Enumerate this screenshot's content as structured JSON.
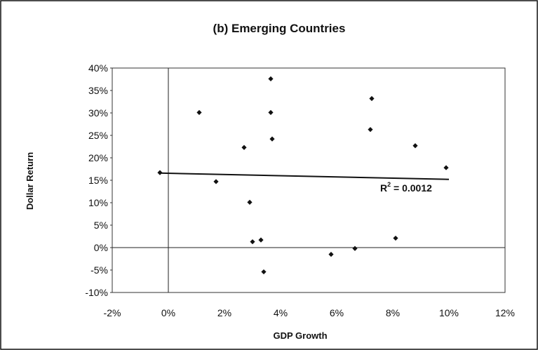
{
  "chart_data": {
    "type": "scatter",
    "title": "(b) Emerging Countries",
    "xlabel": "GDP Growth",
    "ylabel": "Dollar Return",
    "xlim": [
      -0.02,
      0.12
    ],
    "ylim": [
      -0.1,
      0.4
    ],
    "x_ticks": [
      -0.02,
      0.0,
      0.02,
      0.04,
      0.06,
      0.08,
      0.1,
      0.12
    ],
    "x_tick_labels": [
      "-2%",
      "0%",
      "2%",
      "4%",
      "6%",
      "8%",
      "10%",
      "12%"
    ],
    "y_ticks": [
      -0.1,
      -0.05,
      0.0,
      0.05,
      0.1,
      0.15,
      0.2,
      0.25,
      0.3,
      0.35,
      0.4
    ],
    "y_tick_labels": [
      "-10%",
      "-5%",
      "0%",
      "5%",
      "10%",
      "15%",
      "20%",
      "25%",
      "30%",
      "35%",
      "40%"
    ],
    "grid": false,
    "marker_color": "#111111",
    "points": [
      {
        "x": -0.003,
        "y": 0.167
      },
      {
        "x": 0.011,
        "y": 0.301
      },
      {
        "x": 0.017,
        "y": 0.147
      },
      {
        "x": 0.027,
        "y": 0.223
      },
      {
        "x": 0.029,
        "y": 0.101
      },
      {
        "x": 0.03,
        "y": 0.013
      },
      {
        "x": 0.033,
        "y": 0.017
      },
      {
        "x": 0.034,
        "y": -0.054
      },
      {
        "x": 0.0365,
        "y": 0.376
      },
      {
        "x": 0.0365,
        "y": 0.301
      },
      {
        "x": 0.037,
        "y": 0.242
      },
      {
        "x": 0.058,
        "y": -0.015
      },
      {
        "x": 0.0665,
        "y": -0.002
      },
      {
        "x": 0.072,
        "y": 0.263
      },
      {
        "x": 0.0725,
        "y": 0.332
      },
      {
        "x": 0.081,
        "y": 0.021
      },
      {
        "x": 0.088,
        "y": 0.227
      },
      {
        "x": 0.099,
        "y": 0.178
      }
    ],
    "trendline": {
      "x": [
        -0.003,
        0.1
      ],
      "y": [
        0.166,
        0.152
      ]
    },
    "annotation": {
      "base": "R",
      "sup": "2",
      "rest": " = 0.0012",
      "x": 0.0755,
      "y": 0.125
    }
  }
}
